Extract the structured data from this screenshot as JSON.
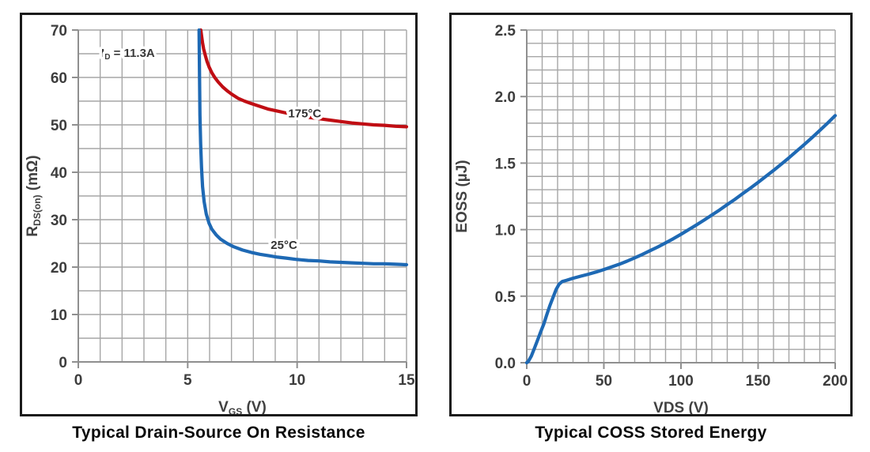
{
  "colors": {
    "background": "#ffffff",
    "box_border": "#1b1b1b",
    "grid": "#a6a6a6",
    "axis": "#8f8f8f",
    "tick_text": "#3d3d3d",
    "axis_label_text": "#414141",
    "title_text": "#0a0a0a",
    "annotation_text": "#3a3a3a",
    "curve_blue": "#1e69b4",
    "curve_red": "#c00d13"
  },
  "chart_data": [
    {
      "id": "rdson",
      "type": "line",
      "title": "Typical Drain-Source On Resistance",
      "xlabel": "V_GS (V)",
      "ylabel": "R_DS(on) (mΩ)",
      "xlabel_parts": [
        {
          "t": "V"
        },
        {
          "t": "GS",
          "sub": true
        },
        {
          "t": " (V)"
        }
      ],
      "ylabel_parts": [
        {
          "t": "R"
        },
        {
          "t": "DS(on)",
          "sub": true
        },
        {
          "t": " (mΩ)"
        }
      ],
      "xlim": [
        0,
        15
      ],
      "ylim": [
        0,
        70
      ],
      "x_minor": 1,
      "y_minor": 5,
      "x_tick_labels": [
        "0",
        "5",
        "10",
        "15"
      ],
      "y_tick_labels": [
        "0",
        "10",
        "20",
        "30",
        "40",
        "50",
        "60",
        "70"
      ],
      "grid": true,
      "legend": "inline-curve-labels",
      "annotation": {
        "parts": [
          {
            "t": "I"
          },
          {
            "t": "D",
            "sub": true
          },
          {
            "t": " = 11.3A"
          }
        ],
        "x": 1.05,
        "y": 65
      },
      "series": [
        {
          "name": "175°C",
          "color": "#c00d13",
          "label": {
            "text": "175°C",
            "x": 10.35,
            "y": 52.4
          },
          "points": [
            [
              5.6,
              70
            ],
            [
              5.64,
              68.6
            ],
            [
              5.68,
              67.3
            ],
            [
              5.73,
              66
            ],
            [
              5.8,
              64.7
            ],
            [
              5.88,
              63.4
            ],
            [
              5.98,
              62.2
            ],
            [
              6.1,
              61
            ],
            [
              6.25,
              59.9
            ],
            [
              6.4,
              59
            ],
            [
              6.6,
              58
            ],
            [
              6.8,
              57.2
            ],
            [
              7.0,
              56.5
            ],
            [
              7.3,
              55.6
            ],
            [
              7.6,
              55
            ],
            [
              7.9,
              54.5
            ],
            [
              8.3,
              53.9
            ],
            [
              8.7,
              53.3
            ],
            [
              9.1,
              52.9
            ],
            [
              9.5,
              52.5
            ],
            [
              10.0,
              52.0
            ],
            [
              10.5,
              51.6
            ],
            [
              11.0,
              51.3
            ],
            [
              11.5,
              51.0
            ],
            [
              12.0,
              50.7
            ],
            [
              12.5,
              50.4
            ],
            [
              13.0,
              50.2
            ],
            [
              13.5,
              50.0
            ],
            [
              14.0,
              49.9
            ],
            [
              14.5,
              49.7
            ],
            [
              15.0,
              49.6
            ]
          ]
        },
        {
          "name": "25°C",
          "color": "#1e69b4",
          "label": {
            "text": "25°C",
            "x": 9.4,
            "y": 24.7
          },
          "points": [
            [
              5.52,
              70
            ],
            [
              5.54,
              60
            ],
            [
              5.56,
              52
            ],
            [
              5.59,
              46
            ],
            [
              5.63,
              41
            ],
            [
              5.68,
              37
            ],
            [
              5.75,
              33.8
            ],
            [
              5.85,
              31.2
            ],
            [
              5.97,
              29.3
            ],
            [
              6.1,
              28.0
            ],
            [
              6.3,
              26.8
            ],
            [
              6.5,
              25.9
            ],
            [
              6.8,
              25.0
            ],
            [
              7.1,
              24.3
            ],
            [
              7.5,
              23.6
            ],
            [
              7.9,
              23.1
            ],
            [
              8.3,
              22.7
            ],
            [
              8.7,
              22.4
            ],
            [
              9.1,
              22.1
            ],
            [
              9.5,
              21.9
            ],
            [
              10.0,
              21.6
            ],
            [
              10.5,
              21.4
            ],
            [
              11.0,
              21.3
            ],
            [
              11.5,
              21.1
            ],
            [
              12.0,
              21.0
            ],
            [
              12.5,
              20.9
            ],
            [
              13.0,
              20.8
            ],
            [
              13.5,
              20.7
            ],
            [
              14.0,
              20.7
            ],
            [
              14.5,
              20.6
            ],
            [
              15.0,
              20.5
            ]
          ]
        }
      ]
    },
    {
      "id": "eoss",
      "type": "line",
      "title": "Typical COSS Stored Energy",
      "xlabel": "VDS (V)",
      "ylabel": "EOSS (µJ)",
      "xlabel_parts": [
        {
          "t": "VDS (V)"
        }
      ],
      "ylabel_parts": [
        {
          "t": "EOSS (µJ)"
        }
      ],
      "xlim": [
        0,
        200
      ],
      "ylim": [
        0,
        2.5
      ],
      "x_minor": 10,
      "y_minor": 0.1,
      "x_tick_labels": [
        "0",
        "50",
        "100",
        "150",
        "200"
      ],
      "y_tick_labels": [
        "0.0",
        "0.5",
        "1.0",
        "1.5",
        "2.0",
        "2.5"
      ],
      "grid": true,
      "legend": "none",
      "series": [
        {
          "name": "EOSS",
          "color": "#1e69b4",
          "points": [
            [
              0,
              0
            ],
            [
              1,
              0.01
            ],
            [
              3,
              0.05
            ],
            [
              5,
              0.11
            ],
            [
              7,
              0.17
            ],
            [
              9,
              0.23
            ],
            [
              11,
              0.29
            ],
            [
              13,
              0.36
            ],
            [
              15,
              0.43
            ],
            [
              17,
              0.49
            ],
            [
              19,
              0.55
            ],
            [
              21,
              0.59
            ],
            [
              23,
              0.61
            ],
            [
              26,
              0.62
            ],
            [
              30,
              0.635
            ],
            [
              35,
              0.65
            ],
            [
              40,
              0.665
            ],
            [
              45,
              0.682
            ],
            [
              50,
              0.7
            ],
            [
              55,
              0.72
            ],
            [
              60,
              0.74
            ],
            [
              65,
              0.763
            ],
            [
              70,
              0.788
            ],
            [
              75,
              0.814
            ],
            [
              80,
              0.842
            ],
            [
              85,
              0.87
            ],
            [
              90,
              0.9
            ],
            [
              95,
              0.932
            ],
            [
              100,
              0.965
            ],
            [
              105,
              1.0
            ],
            [
              110,
              1.035
            ],
            [
              115,
              1.072
            ],
            [
              120,
              1.11
            ],
            [
              125,
              1.148
            ],
            [
              130,
              1.188
            ],
            [
              135,
              1.228
            ],
            [
              140,
              1.27
            ],
            [
              145,
              1.312
            ],
            [
              150,
              1.355
            ],
            [
              155,
              1.4
            ],
            [
              160,
              1.445
            ],
            [
              165,
              1.492
            ],
            [
              170,
              1.54
            ],
            [
              175,
              1.59
            ],
            [
              180,
              1.64
            ],
            [
              185,
              1.692
            ],
            [
              190,
              1.745
            ],
            [
              195,
              1.8
            ],
            [
              200,
              1.857
            ]
          ]
        }
      ]
    }
  ]
}
